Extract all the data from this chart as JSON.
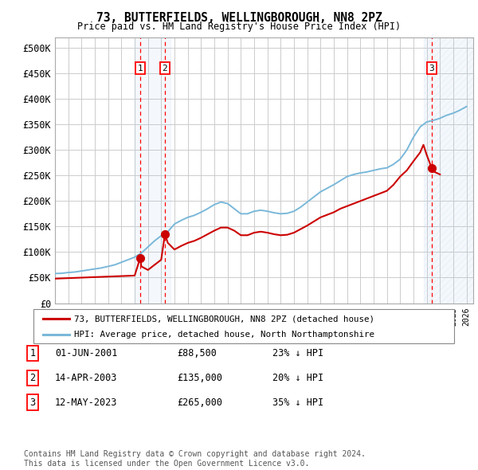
{
  "title": "73, BUTTERFIELDS, WELLINGBOROUGH, NN8 2PZ",
  "subtitle": "Price paid vs. HM Land Registry's House Price Index (HPI)",
  "ylabel_ticks": [
    "£0",
    "£50K",
    "£100K",
    "£150K",
    "£200K",
    "£250K",
    "£300K",
    "£350K",
    "£400K",
    "£450K",
    "£500K"
  ],
  "ytick_values": [
    0,
    50000,
    100000,
    150000,
    200000,
    250000,
    300000,
    350000,
    400000,
    450000,
    500000
  ],
  "ylim": [
    0,
    520000
  ],
  "xlim_start": 1995.0,
  "xlim_end": 2026.5,
  "sale_points": [
    {
      "label": "1",
      "date_str": "01-JUN-2001",
      "year": 2001.42,
      "price": 88500
    },
    {
      "label": "2",
      "date_str": "14-APR-2003",
      "year": 2003.28,
      "price": 135000
    },
    {
      "label": "3",
      "date_str": "12-MAY-2023",
      "year": 2023.37,
      "price": 265000
    }
  ],
  "hpi_line_color": "#7ab8d9",
  "price_line_color": "#cc0000",
  "sale_marker_color": "#cc0000",
  "sale_marker_size": 7,
  "background_color": "#ffffff",
  "grid_color": "#cccccc",
  "legend_entries": [
    {
      "label": "73, BUTTERFIELDS, WELLINGBOROUGH, NN8 2PZ (detached house)",
      "color": "#cc0000"
    },
    {
      "label": "HPI: Average price, detached house, North Northamptonshire",
      "color": "#7ab8d9"
    }
  ],
  "footer_text": "Contains HM Land Registry data © Crown copyright and database right 2024.\nThis data is licensed under the Open Government Licence v3.0.",
  "table_rows": [
    {
      "label": "1",
      "date": "01-JUN-2001",
      "price": "£88,500",
      "hpi": "23% ↓ HPI"
    },
    {
      "label": "2",
      "date": "14-APR-2003",
      "price": "£135,000",
      "hpi": "20% ↓ HPI"
    },
    {
      "label": "3",
      "date": "12-MAY-2023",
      "price": "£265,000",
      "hpi": "35% ↓ HPI"
    }
  ],
  "hpi_data": [
    [
      1995.0,
      58000
    ],
    [
      1995.5,
      58500
    ],
    [
      1996.0,
      60000
    ],
    [
      1996.5,
      61000
    ],
    [
      1997.0,
      63000
    ],
    [
      1997.5,
      65000
    ],
    [
      1998.0,
      67000
    ],
    [
      1998.5,
      69000
    ],
    [
      1999.0,
      72000
    ],
    [
      1999.5,
      75000
    ],
    [
      2000.0,
      80000
    ],
    [
      2000.5,
      85000
    ],
    [
      2001.0,
      90000
    ],
    [
      2001.5,
      98000
    ],
    [
      2002.0,
      110000
    ],
    [
      2002.5,
      122000
    ],
    [
      2003.0,
      132000
    ],
    [
      2003.5,
      140000
    ],
    [
      2004.0,
      155000
    ],
    [
      2004.5,
      162000
    ],
    [
      2005.0,
      168000
    ],
    [
      2005.5,
      172000
    ],
    [
      2006.0,
      178000
    ],
    [
      2006.5,
      185000
    ],
    [
      2007.0,
      193000
    ],
    [
      2007.5,
      198000
    ],
    [
      2008.0,
      195000
    ],
    [
      2008.5,
      185000
    ],
    [
      2009.0,
      175000
    ],
    [
      2009.5,
      175000
    ],
    [
      2010.0,
      180000
    ],
    [
      2010.5,
      182000
    ],
    [
      2011.0,
      180000
    ],
    [
      2011.5,
      177000
    ],
    [
      2012.0,
      175000
    ],
    [
      2012.5,
      176000
    ],
    [
      2013.0,
      180000
    ],
    [
      2013.5,
      188000
    ],
    [
      2014.0,
      198000
    ],
    [
      2014.5,
      208000
    ],
    [
      2015.0,
      218000
    ],
    [
      2015.5,
      225000
    ],
    [
      2016.0,
      232000
    ],
    [
      2016.5,
      240000
    ],
    [
      2017.0,
      248000
    ],
    [
      2017.5,
      252000
    ],
    [
      2018.0,
      255000
    ],
    [
      2018.5,
      257000
    ],
    [
      2019.0,
      260000
    ],
    [
      2019.5,
      263000
    ],
    [
      2020.0,
      265000
    ],
    [
      2020.5,
      272000
    ],
    [
      2021.0,
      282000
    ],
    [
      2021.5,
      300000
    ],
    [
      2022.0,
      325000
    ],
    [
      2022.5,
      345000
    ],
    [
      2023.0,
      355000
    ],
    [
      2023.5,
      358000
    ],
    [
      2024.0,
      362000
    ],
    [
      2024.5,
      368000
    ],
    [
      2025.0,
      372000
    ],
    [
      2025.5,
      378000
    ],
    [
      2026.0,
      385000
    ]
  ],
  "price_data": [
    [
      1995.0,
      48000
    ],
    [
      1995.5,
      48500
    ],
    [
      1996.0,
      49000
    ],
    [
      1996.5,
      49500
    ],
    [
      1997.0,
      50000
    ],
    [
      1997.5,
      50500
    ],
    [
      1998.0,
      51000
    ],
    [
      1998.5,
      51500
    ],
    [
      1999.0,
      52000
    ],
    [
      1999.5,
      52500
    ],
    [
      2000.0,
      53000
    ],
    [
      2000.5,
      53500
    ],
    [
      2001.0,
      54000
    ],
    [
      2001.42,
      88500
    ],
    [
      2001.5,
      72000
    ],
    [
      2002.0,
      65000
    ],
    [
      2002.5,
      75000
    ],
    [
      2003.0,
      85000
    ],
    [
      2003.28,
      135000
    ],
    [
      2003.5,
      118000
    ],
    [
      2004.0,
      105000
    ],
    [
      2004.5,
      112000
    ],
    [
      2005.0,
      118000
    ],
    [
      2005.5,
      122000
    ],
    [
      2006.0,
      128000
    ],
    [
      2006.5,
      135000
    ],
    [
      2007.0,
      142000
    ],
    [
      2007.5,
      148000
    ],
    [
      2008.0,
      148000
    ],
    [
      2008.5,
      142000
    ],
    [
      2009.0,
      133000
    ],
    [
      2009.5,
      133000
    ],
    [
      2010.0,
      138000
    ],
    [
      2010.5,
      140000
    ],
    [
      2011.0,
      138000
    ],
    [
      2011.5,
      135000
    ],
    [
      2012.0,
      133000
    ],
    [
      2012.5,
      134000
    ],
    [
      2013.0,
      138000
    ],
    [
      2013.5,
      145000
    ],
    [
      2014.0,
      152000
    ],
    [
      2014.5,
      160000
    ],
    [
      2015.0,
      168000
    ],
    [
      2015.5,
      173000
    ],
    [
      2016.0,
      178000
    ],
    [
      2016.5,
      185000
    ],
    [
      2017.0,
      190000
    ],
    [
      2017.5,
      195000
    ],
    [
      2018.0,
      200000
    ],
    [
      2018.5,
      205000
    ],
    [
      2019.0,
      210000
    ],
    [
      2019.5,
      215000
    ],
    [
      2020.0,
      220000
    ],
    [
      2020.5,
      232000
    ],
    [
      2021.0,
      248000
    ],
    [
      2021.5,
      260000
    ],
    [
      2022.0,
      278000
    ],
    [
      2022.5,
      295000
    ],
    [
      2022.75,
      310000
    ],
    [
      2023.0,
      290000
    ],
    [
      2023.37,
      265000
    ],
    [
      2023.5,
      258000
    ],
    [
      2024.0,
      252000
    ]
  ]
}
